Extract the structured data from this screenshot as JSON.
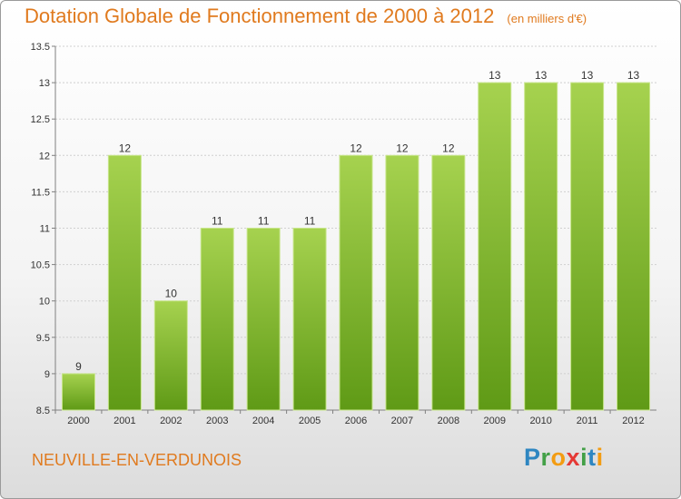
{
  "title": {
    "main": "Dotation Globale de Fonctionnement de 2000 à 2012",
    "unit": "(en milliers d'€)"
  },
  "commune": "NEUVILLE-EN-VERDUNOIS",
  "logo": {
    "letters": [
      {
        "ch": "P",
        "color": "#2e86c1"
      },
      {
        "ch": "r",
        "color": "#43a047"
      },
      {
        "ch": "o",
        "color": "#f39c12"
      },
      {
        "ch": "x",
        "color": "#e53935"
      },
      {
        "ch": "i",
        "color": "#43a047"
      },
      {
        "ch": "t",
        "color": "#2e86c1"
      },
      {
        "ch": "i",
        "color": "#f39c12"
      }
    ]
  },
  "chart_data": {
    "type": "bar",
    "categories": [
      "2000",
      "2001",
      "2002",
      "2003",
      "2004",
      "2005",
      "2006",
      "2007",
      "2008",
      "2009",
      "2010",
      "2011",
      "2012"
    ],
    "values": [
      9,
      12,
      10,
      11,
      11,
      11,
      12,
      12,
      12,
      13,
      13,
      13,
      13
    ],
    "data_labels": [
      "9",
      "12",
      "10",
      "11",
      "11",
      "11",
      "12",
      "12",
      "12",
      "13",
      "13",
      "13",
      "13"
    ],
    "ylim": [
      8.5,
      13.5
    ],
    "yticks": [
      8.5,
      9,
      9.5,
      10,
      10.5,
      11,
      11.5,
      12,
      12.5,
      13,
      13.5
    ],
    "ytick_labels": [
      "8.5",
      "9",
      "9.5",
      "10",
      "10.5",
      "11",
      "11.5",
      "12",
      "12.5",
      "13",
      "13.5"
    ],
    "grid": true,
    "colors": {
      "bar_light": "#a6d24f",
      "bar_dark": "#5f9a16",
      "bar_edge": "#c8e68c",
      "grid": "#d0d0d0",
      "axis": "#808080",
      "text": "#333333"
    }
  }
}
